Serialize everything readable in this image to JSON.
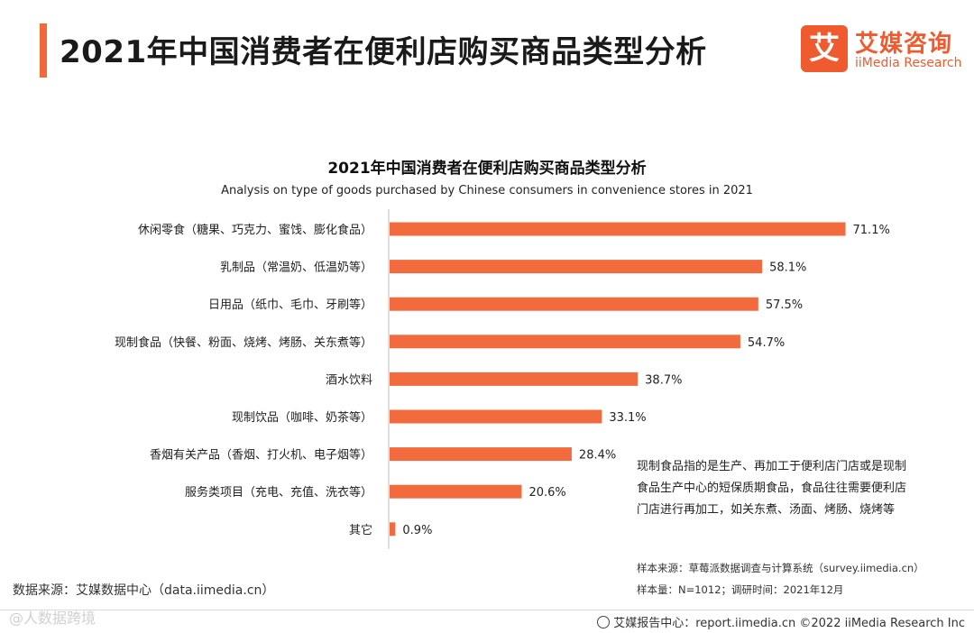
{
  "header": {
    "title": "2021年中国消费者在便利店购买商品类型分析",
    "logo_mark": "艾",
    "logo_cn": "艾媒咨询",
    "logo_en": "iiMedia Research"
  },
  "chart_data": {
    "type": "bar",
    "orientation": "horizontal",
    "title": "2021年中国消费者在便利店购买商品类型分析",
    "subtitle": "Analysis on type of goods purchased by Chinese consumers in convenience stores in 2021",
    "categories": [
      "休闲零食（糖果、巧克力、蜜饯、膨化食品）",
      "乳制品（常温奶、低温奶等）",
      "日用品（纸巾、毛巾、牙刷等）",
      "现制食品（快餐、粉面、烧烤、烤肠、关东煮等）",
      "酒水饮料",
      "现制饮品（咖啡、奶茶等）",
      "香烟有关产品（香烟、打火机、电子烟等）",
      "服务类项目（充电、充值、洗衣等）",
      "其它"
    ],
    "values": [
      71.1,
      58.1,
      57.5,
      54.7,
      38.7,
      33.1,
      28.4,
      20.6,
      0.9
    ],
    "value_labels": [
      "71.1%",
      "58.1%",
      "57.5%",
      "54.7%",
      "38.7%",
      "33.1%",
      "28.4%",
      "20.6%",
      "0.9%"
    ],
    "unit": "%",
    "xlim": [
      0,
      80
    ],
    "bar_color": "#f26b3e"
  },
  "note": {
    "line1": "现制食品指的是生产、再加工于便利店门店或是现制",
    "line2": "食品生产中心的短保质期食品，食品往往需要便利店",
    "line3": "门店进行再加工，如关东煮、汤面、烤肠、烧烤等"
  },
  "sample": {
    "source": "样本来源：草莓派数据调查与计算系统（survey.iimedia.cn）",
    "size": "样本量：N=1012；调研时间：2021年12月"
  },
  "data_source": "数据来源：艾媒数据中心（data.iimedia.cn）",
  "footer": "艾媒报告中心：report.iimedia.cn  ©2022  iiMedia Research  Inc",
  "watermark": "@人数据跨境"
}
